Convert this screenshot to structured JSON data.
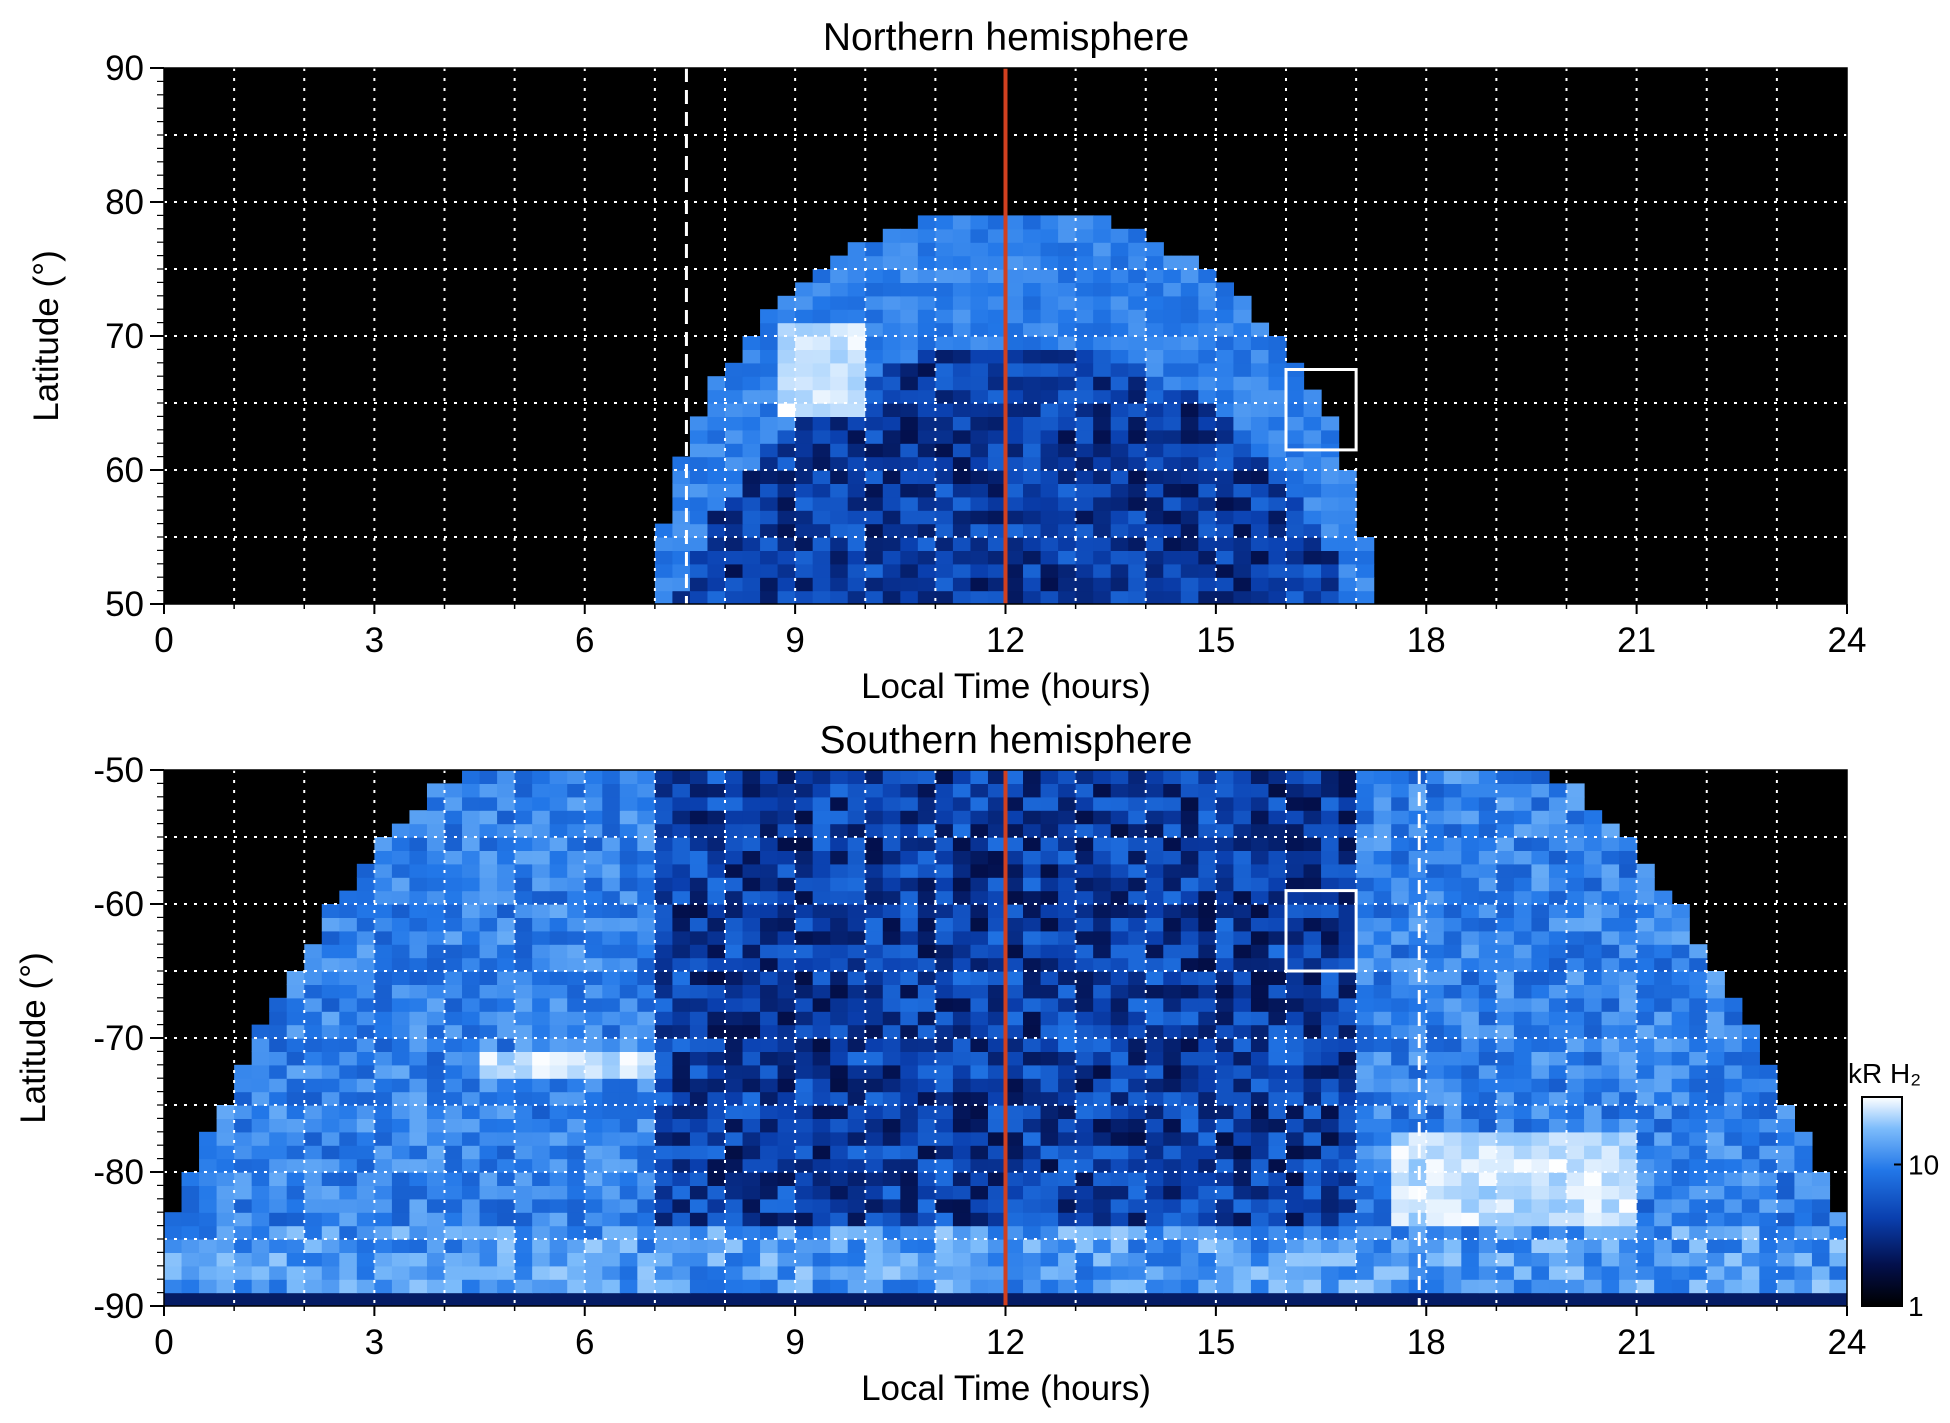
{
  "chart_data": [
    {
      "type": "heatmap",
      "title": "Northern hemisphere",
      "xlabel": "Local Time (hours)",
      "ylabel": "Latitude (°)",
      "xlim": [
        0,
        24
      ],
      "ylim": [
        50,
        90
      ],
      "xticks": [
        "0",
        "3",
        "6",
        "9",
        "12",
        "15",
        "18",
        "21",
        "24"
      ],
      "yticks": [
        "50",
        "60",
        "70",
        "80",
        "90"
      ],
      "grid": true,
      "grid_style": "white dotted",
      "colormap": "black-blue-white",
      "markers": {
        "red_line_local_time": 12,
        "dashed_line_local_time": 7.45,
        "box": {
          "local_time": [
            16,
            17
          ],
          "latitude": [
            61.5,
            67.5
          ]
        }
      },
      "coverage": {
        "local_time": [
          7.0,
          17.2
        ],
        "latitude_max": 79.5
      },
      "bright_patch": {
        "local_time": [
          8.8,
          10.0
        ],
        "latitude": [
          63.5,
          71.5
        ]
      }
    },
    {
      "type": "heatmap",
      "title": "Southern hemisphere",
      "xlabel": "Local Time (hours)",
      "ylabel": "Latitude (°)",
      "xlim": [
        0,
        24
      ],
      "ylim": [
        -90,
        -50
      ],
      "xticks": [
        "0",
        "3",
        "6",
        "9",
        "12",
        "15",
        "18",
        "21",
        "24"
      ],
      "yticks": [
        "-50",
        "-60",
        "-70",
        "-80",
        "-90"
      ],
      "grid": true,
      "grid_style": "white dotted",
      "colormap": "black-blue-white",
      "markers": {
        "red_line_local_time": 12,
        "dashed_line_local_time": 17.9,
        "box": {
          "local_time": [
            16,
            17
          ],
          "latitude": [
            -65,
            -59
          ]
        }
      },
      "bright_patches": [
        {
          "local_time": [
            4.5,
            7.0
          ],
          "latitude": [
            -73,
            -71
          ]
        },
        {
          "local_time": [
            17.5,
            21.0
          ],
          "latitude": [
            -84,
            -77
          ]
        }
      ]
    }
  ],
  "colorbar": {
    "label": "kR H₂",
    "ticks": [
      "10",
      "1"
    ],
    "scale": "log",
    "range": [
      1,
      30
    ],
    "colors": [
      "#000000",
      "#03104d",
      "#0a3fae",
      "#2277e8",
      "#7dbcfb",
      "#ffffff"
    ]
  }
}
